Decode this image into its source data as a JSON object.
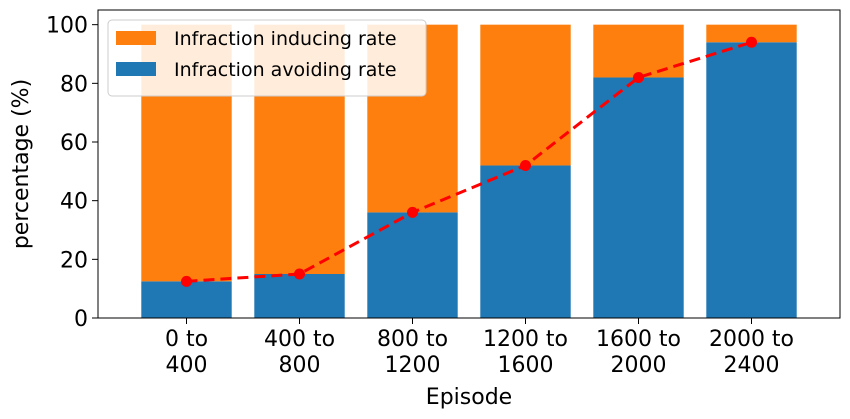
{
  "chart_data": {
    "type": "bar",
    "stacked": true,
    "categories": [
      [
        "0 to",
        "400"
      ],
      [
        "400 to",
        "800"
      ],
      [
        "800 to",
        "1200"
      ],
      [
        "1200 to",
        "1600"
      ],
      [
        "1600 to",
        "2000"
      ],
      [
        "2000 to",
        "2400"
      ]
    ],
    "series": [
      {
        "name": "Infraction avoiding rate",
        "values": [
          12.5,
          15,
          36,
          52,
          82,
          94
        ],
        "color": "#1f77b4"
      },
      {
        "name": "Infraction inducing rate",
        "values": [
          87.5,
          85,
          64,
          48,
          18,
          6
        ],
        "color": "#ff7f0e"
      }
    ],
    "line": {
      "values": [
        12.5,
        15,
        36,
        52,
        82,
        94
      ],
      "color": "#ff0000",
      "style": "dashed",
      "marker": "circle"
    },
    "xlabel": "Episode",
    "ylabel": "percentage (%)",
    "ylim": [
      0,
      105
    ],
    "yticks": [
      0,
      20,
      40,
      60,
      80,
      100
    ],
    "legend": {
      "placement": "top-left",
      "entries": [
        "Infraction inducing rate",
        "Infraction avoiding rate"
      ]
    },
    "grid": false
  }
}
